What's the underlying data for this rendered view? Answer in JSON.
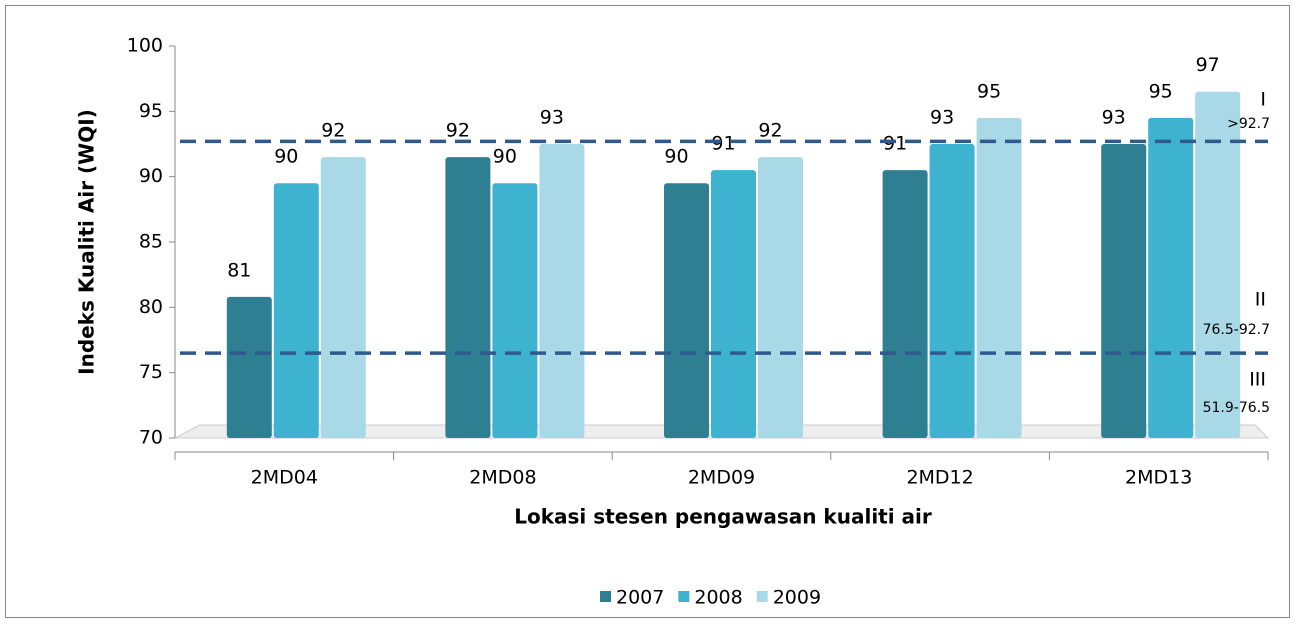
{
  "chart_data": {
    "type": "bar",
    "x_label": "Lokasi stesen pengawasan kualiti air",
    "y_label": "Indeks Kualiti Air (WQI)",
    "categories": [
      "2MD04",
      "2MD08",
      "2MD09",
      "2MD12",
      "2MD13"
    ],
    "series": [
      {
        "name": "2007",
        "color": "#2f7f92",
        "values": [
          80.8,
          91.5,
          89.5,
          90.5,
          92.5
        ],
        "value_labels": [
          "81",
          "92",
          "90",
          "91",
          "93"
        ]
      },
      {
        "name": "2008",
        "color": "#3db3d0",
        "values": [
          89.5,
          89.5,
          90.5,
          92.5,
          94.5
        ],
        "value_labels": [
          "90",
          "90",
          "91",
          "93",
          "95"
        ]
      },
      {
        "name": "2009",
        "color": "#a9d8e6",
        "values": [
          91.5,
          92.5,
          91.5,
          94.5,
          96.5
        ],
        "value_labels": [
          "92",
          "93",
          "92",
          "95",
          "97"
        ]
      }
    ],
    "ylim": [
      70,
      100
    ],
    "yticks": [
      70,
      75,
      80,
      85,
      90,
      95,
      100
    ],
    "reference_lines": [
      92.7,
      76.5
    ],
    "reference_color": "#2e5a8e",
    "classes": [
      {
        "name": "I",
        "range": ">92.7"
      },
      {
        "name": "II",
        "range": "76.5-92.7"
      },
      {
        "name": "III",
        "range": "51.9-76.5"
      }
    ],
    "legend": "bottom"
  }
}
